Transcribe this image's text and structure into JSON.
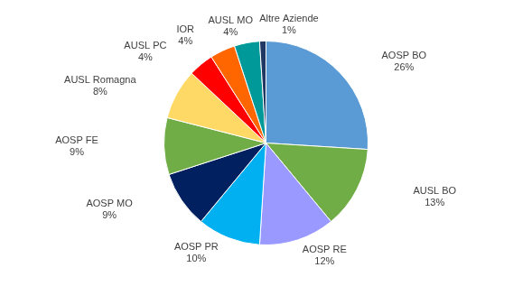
{
  "chart_data": {
    "type": "pie",
    "categories": [
      "AOSP BO",
      "AUSL BO",
      "AOSP RE",
      "AOSP PR",
      "AOSP MO",
      "AOSP FE",
      "AUSL Romagna",
      "AUSL PC",
      "IOR",
      "AUSL MO",
      "Altre Aziende"
    ],
    "values": [
      26,
      13,
      12,
      10,
      9,
      9,
      8,
      4,
      4,
      4,
      1
    ],
    "value_labels": [
      "26%",
      "13%",
      "12%",
      "10%",
      "9%",
      "9%",
      "8%",
      "4%",
      "4%",
      "4%",
      "1%"
    ],
    "colors": [
      "#5b9bd5",
      "#70ad47",
      "#9999ff",
      "#00b0f0",
      "#002060",
      "#70ad47",
      "#ffd966",
      "#ff0000",
      "#ff6600",
      "#009999",
      "#1f3864"
    ],
    "data_labels": true
  }
}
